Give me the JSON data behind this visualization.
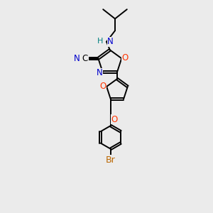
{
  "background_color": "#ebebeb",
  "bond_color": "#000000",
  "N_color": "#0000cc",
  "O_color": "#ff3300",
  "Br_color": "#bb6600",
  "H_color": "#008080",
  "lw": 1.4,
  "fs": 8.5,
  "xlim": [
    0.0,
    10.0
  ],
  "ylim": [
    -1.0,
    11.5
  ]
}
